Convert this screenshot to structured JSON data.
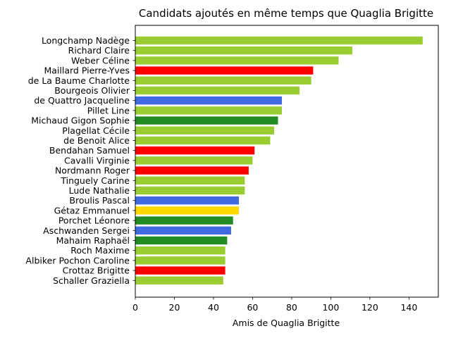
{
  "chart_data": {
    "type": "bar",
    "orientation": "horizontal",
    "title": "Candidats ajoutés en même temps que Quaglia Brigitte",
    "xlabel": "Amis de Quaglia Brigitte",
    "ylabel": "",
    "xlim": [
      0,
      155
    ],
    "xticks": [
      0,
      20,
      40,
      60,
      80,
      100,
      120,
      140
    ],
    "grid": false,
    "categories": [
      "Longchamp Nadège",
      "Richard Claire",
      "Weber Céline",
      "Maillard Pierre-Yves",
      "de La Baume Charlotte",
      "Bourgeois Olivier",
      "de Quattro Jacqueline",
      "Pillet Line",
      "Michaud Gigon Sophie",
      "Plagellat Cécile",
      "de Benoit Alice",
      "Bendahan Samuel",
      "Cavalli Virginie",
      "Nordmann Roger",
      "Tinguely Carine",
      "Lude Nathalie",
      "Broulis Pascal",
      "Gétaz Emmanuel",
      "Porchet Léonore",
      "Aschwanden Sergei",
      "Mahaim Raphaël",
      "Roch Maxime",
      "Albiker Pochon Caroline",
      "Crottaz Brigitte",
      "Schaller Graziella"
    ],
    "values": [
      147,
      111,
      104,
      91,
      90,
      84,
      75,
      75,
      73,
      71,
      69,
      61,
      60,
      58,
      56,
      56,
      53,
      53,
      50,
      49,
      47,
      46,
      46,
      46,
      45
    ],
    "colors": [
      "#9acd32",
      "#9acd32",
      "#9acd32",
      "#ff0000",
      "#9acd32",
      "#9acd32",
      "#4169e1",
      "#9acd32",
      "#228b22",
      "#9acd32",
      "#9acd32",
      "#ff0000",
      "#9acd32",
      "#ff0000",
      "#9acd32",
      "#9acd32",
      "#4169e1",
      "#ffd700",
      "#228b22",
      "#4169e1",
      "#228b22",
      "#9acd32",
      "#9acd32",
      "#ff0000",
      "#9acd32"
    ]
  }
}
